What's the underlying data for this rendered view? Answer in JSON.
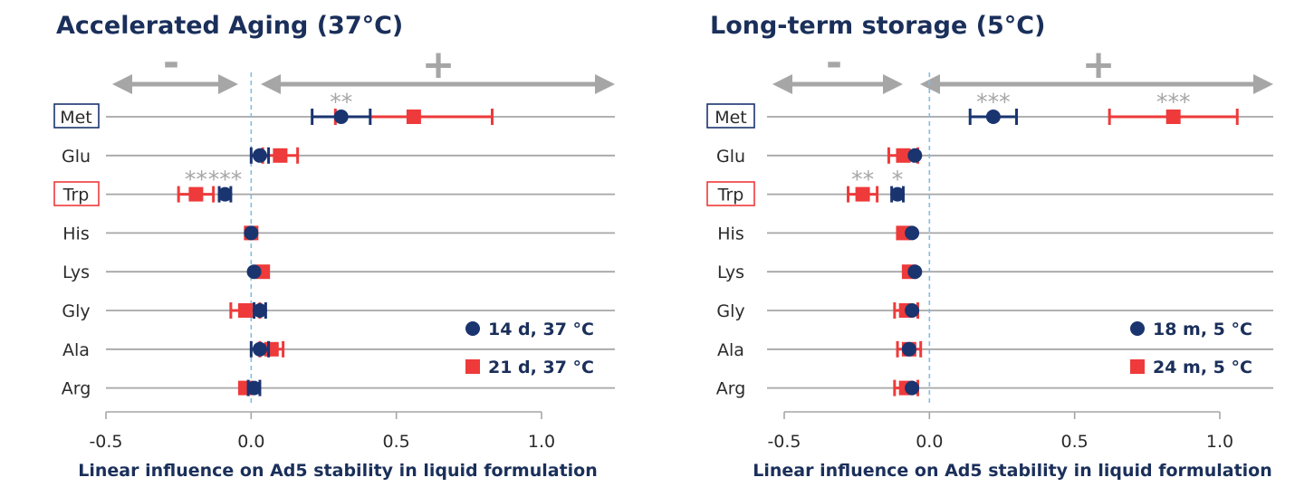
{
  "colors": {
    "navy": "#1a3470",
    "red": "#ee3a3a",
    "grid": "#a6a6a6",
    "dashed_zero": "#7fbfe0",
    "text_dark": "#1a2f5a",
    "gray_annot": "#a6a6a6"
  },
  "chart_data": [
    {
      "type": "dot-plot-with-error-bars",
      "title": "Accelerated Aging (37°C)",
      "xlabel": "Linear influence on Ad5 stability in liquid formulation",
      "xlim": [
        -0.5,
        1.2
      ],
      "xticks": [
        -0.5,
        0.0,
        0.5,
        1.0
      ],
      "xtick_labels": [
        "-0.5",
        "0.0",
        "0.5",
        "1.0"
      ],
      "direction_labels": {
        "negative": "-",
        "positive": "+"
      },
      "categories": [
        "Met",
        "Glu",
        "Trp",
        "His",
        "Lys",
        "Gly",
        "Ala",
        "Arg"
      ],
      "boxed_categories": {
        "Met": "navy",
        "Trp": "red"
      },
      "legend_position": "bottom-right",
      "series": [
        {
          "name": "14 d, 37 °C",
          "marker": "circle",
          "color": "navy",
          "values": [
            0.31,
            0.03,
            -0.09,
            0.0,
            0.01,
            0.03,
            0.03,
            0.01
          ],
          "errors": [
            0.1,
            0.03,
            0.02,
            0.0,
            0.0,
            0.02,
            0.03,
            0.02
          ],
          "significance": [
            "**",
            "",
            "***",
            "",
            "",
            "",
            "",
            ""
          ]
        },
        {
          "name": "21 d, 37 °C",
          "marker": "square",
          "color": "red",
          "values": [
            0.56,
            0.1,
            -0.19,
            0.0,
            0.04,
            -0.02,
            0.07,
            -0.02
          ],
          "errors": [
            0.27,
            0.06,
            0.06,
            0.0,
            0.0,
            0.05,
            0.04,
            0.0
          ],
          "significance": [
            "",
            "",
            "**",
            "",
            "",
            "",
            "",
            ""
          ]
        }
      ]
    },
    {
      "type": "dot-plot-with-error-bars",
      "title": "Long-term storage (5°C)",
      "xlabel": "Linear influence on Ad5 stability in liquid formulation",
      "xlim": [
        -0.5,
        1.2
      ],
      "xticks": [
        -0.5,
        0.0,
        0.5,
        1.0
      ],
      "xtick_labels": [
        "-0.5",
        "0.0",
        "0.5",
        "1.0"
      ],
      "direction_labels": {
        "negative": "-",
        "positive": "+"
      },
      "categories": [
        "Met",
        "Glu",
        "Trp",
        "His",
        "Lys",
        "Gly",
        "Ala",
        "Arg"
      ],
      "boxed_categories": {
        "Met": "navy",
        "Trp": "red"
      },
      "legend_position": "bottom-right",
      "series": [
        {
          "name": "18 m, 5 °C",
          "marker": "circle",
          "color": "navy",
          "values": [
            0.22,
            -0.05,
            -0.11,
            -0.06,
            -0.05,
            -0.06,
            -0.07,
            -0.06
          ],
          "errors": [
            0.08,
            0.0,
            0.02,
            0.0,
            0.0,
            0.0,
            0.0,
            0.0
          ],
          "significance": [
            "***",
            "",
            "*",
            "",
            "",
            "",
            "",
            ""
          ]
        },
        {
          "name": "24 m, 5 °C",
          "marker": "square",
          "color": "red",
          "values": [
            0.84,
            -0.09,
            -0.23,
            -0.09,
            -0.07,
            -0.08,
            -0.07,
            -0.08
          ],
          "errors": [
            0.22,
            0.05,
            0.05,
            0.0,
            0.0,
            0.04,
            0.04,
            0.04
          ],
          "significance": [
            "***",
            "",
            "**",
            "",
            "",
            "",
            "",
            ""
          ]
        }
      ]
    }
  ]
}
